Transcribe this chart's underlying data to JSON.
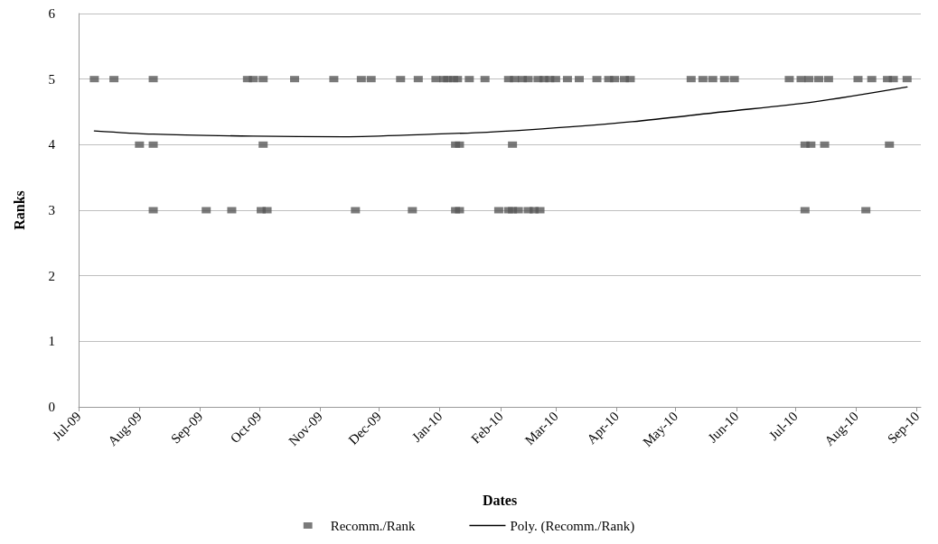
{
  "chart_data": {
    "type": "scatter",
    "xlabel": "Dates",
    "ylabel": "Ranks",
    "xlim": [
      "2009-07-01",
      "2010-09-03"
    ],
    "xticks": [
      {
        "value": "2009-07-01",
        "label": "Jul-09"
      },
      {
        "value": "2009-08-01",
        "label": "Aug-09"
      },
      {
        "value": "2009-09-01",
        "label": "Sep-09"
      },
      {
        "value": "2009-10-01",
        "label": "Oct-09"
      },
      {
        "value": "2009-11-01",
        "label": "Nov-09"
      },
      {
        "value": "2009-12-01",
        "label": "Dec-09"
      },
      {
        "value": "2010-01-01",
        "label": "Jan-10"
      },
      {
        "value": "2010-02-01",
        "label": "Feb-10"
      },
      {
        "value": "2010-03-01",
        "label": "Mar-10"
      },
      {
        "value": "2010-04-01",
        "label": "Apr-10"
      },
      {
        "value": "2010-05-01",
        "label": "May-10"
      },
      {
        "value": "2010-06-01",
        "label": "Jun-10"
      },
      {
        "value": "2010-07-01",
        "label": "Jul-10"
      },
      {
        "value": "2010-08-01",
        "label": "Aug-10"
      },
      {
        "value": "2010-09-01",
        "label": "Sep-10"
      }
    ],
    "ylim": [
      0,
      6
    ],
    "yticks": [
      0,
      1,
      2,
      3,
      4,
      5,
      6
    ],
    "grid": "y",
    "legend": "bottom",
    "series": [
      {
        "name": "Recomm./Rank",
        "marker": "square",
        "color": "#595959",
        "x": [
          "2009-07-09",
          "2009-07-19",
          "2009-08-08",
          "2009-09-25",
          "2009-09-28",
          "2009-10-03",
          "2009-10-19",
          "2009-11-08",
          "2009-11-22",
          "2009-11-27",
          "2009-12-12",
          "2009-12-21",
          "2009-12-30",
          "2010-01-03",
          "2010-01-05",
          "2010-01-08",
          "2010-01-10",
          "2010-01-16",
          "2010-01-24",
          "2010-02-05",
          "2010-02-08",
          "2010-02-12",
          "2010-02-15",
          "2010-02-20",
          "2010-02-23",
          "2010-02-26",
          "2010-03-01",
          "2010-03-07",
          "2010-03-13",
          "2010-03-22",
          "2010-03-28",
          "2010-03-31",
          "2010-04-05",
          "2010-04-08",
          "2010-05-09",
          "2010-05-15",
          "2010-05-20",
          "2010-05-26",
          "2010-05-31",
          "2010-06-28",
          "2010-07-04",
          "2010-07-08",
          "2010-07-13",
          "2010-07-18",
          "2010-08-02",
          "2010-08-09",
          "2010-08-17",
          "2010-08-20",
          "2010-08-27",
          "2009-08-01",
          "2009-08-08",
          "2009-10-03",
          "2010-01-09",
          "2010-01-11",
          "2010-02-07",
          "2010-07-06",
          "2010-07-09",
          "2010-07-16",
          "2010-08-18",
          "2009-08-08",
          "2009-09-04",
          "2009-09-17",
          "2009-10-02",
          "2009-10-05",
          "2009-11-19",
          "2009-12-18",
          "2010-01-09",
          "2010-01-11",
          "2010-01-31",
          "2010-02-05",
          "2010-02-07",
          "2010-02-10",
          "2010-02-15",
          "2010-02-18",
          "2010-02-21",
          "2010-07-06",
          "2010-08-06"
        ],
        "values": [
          5,
          5,
          5,
          5,
          5,
          5,
          5,
          5,
          5,
          5,
          5,
          5,
          5,
          5,
          5,
          5,
          5,
          5,
          5,
          5,
          5,
          5,
          5,
          5,
          5,
          5,
          5,
          5,
          5,
          5,
          5,
          5,
          5,
          5,
          5,
          5,
          5,
          5,
          5,
          5,
          5,
          5,
          5,
          5,
          5,
          5,
          5,
          5,
          5,
          4,
          4,
          4,
          4,
          4,
          4,
          4,
          4,
          4,
          4,
          3,
          3,
          3,
          3,
          3,
          3,
          3,
          3,
          3,
          3,
          3,
          3,
          3,
          3,
          3,
          3,
          3,
          3
        ]
      },
      {
        "name": "Poly. (Recomm./Rank)",
        "type": "line",
        "marker": "none",
        "line_style": "solid",
        "color": "#000000",
        "x": [
          "2009-07-09",
          "2009-08-08",
          "2009-09-28",
          "2009-11-13",
          "2009-12-29",
          "2010-01-25",
          "2010-02-22",
          "2010-04-09",
          "2010-05-25",
          "2010-07-10",
          "2010-08-27"
        ],
        "values": [
          4.21,
          4.16,
          4.13,
          4.12,
          4.16,
          4.19,
          4.24,
          4.35,
          4.5,
          4.65,
          4.88
        ]
      }
    ]
  }
}
